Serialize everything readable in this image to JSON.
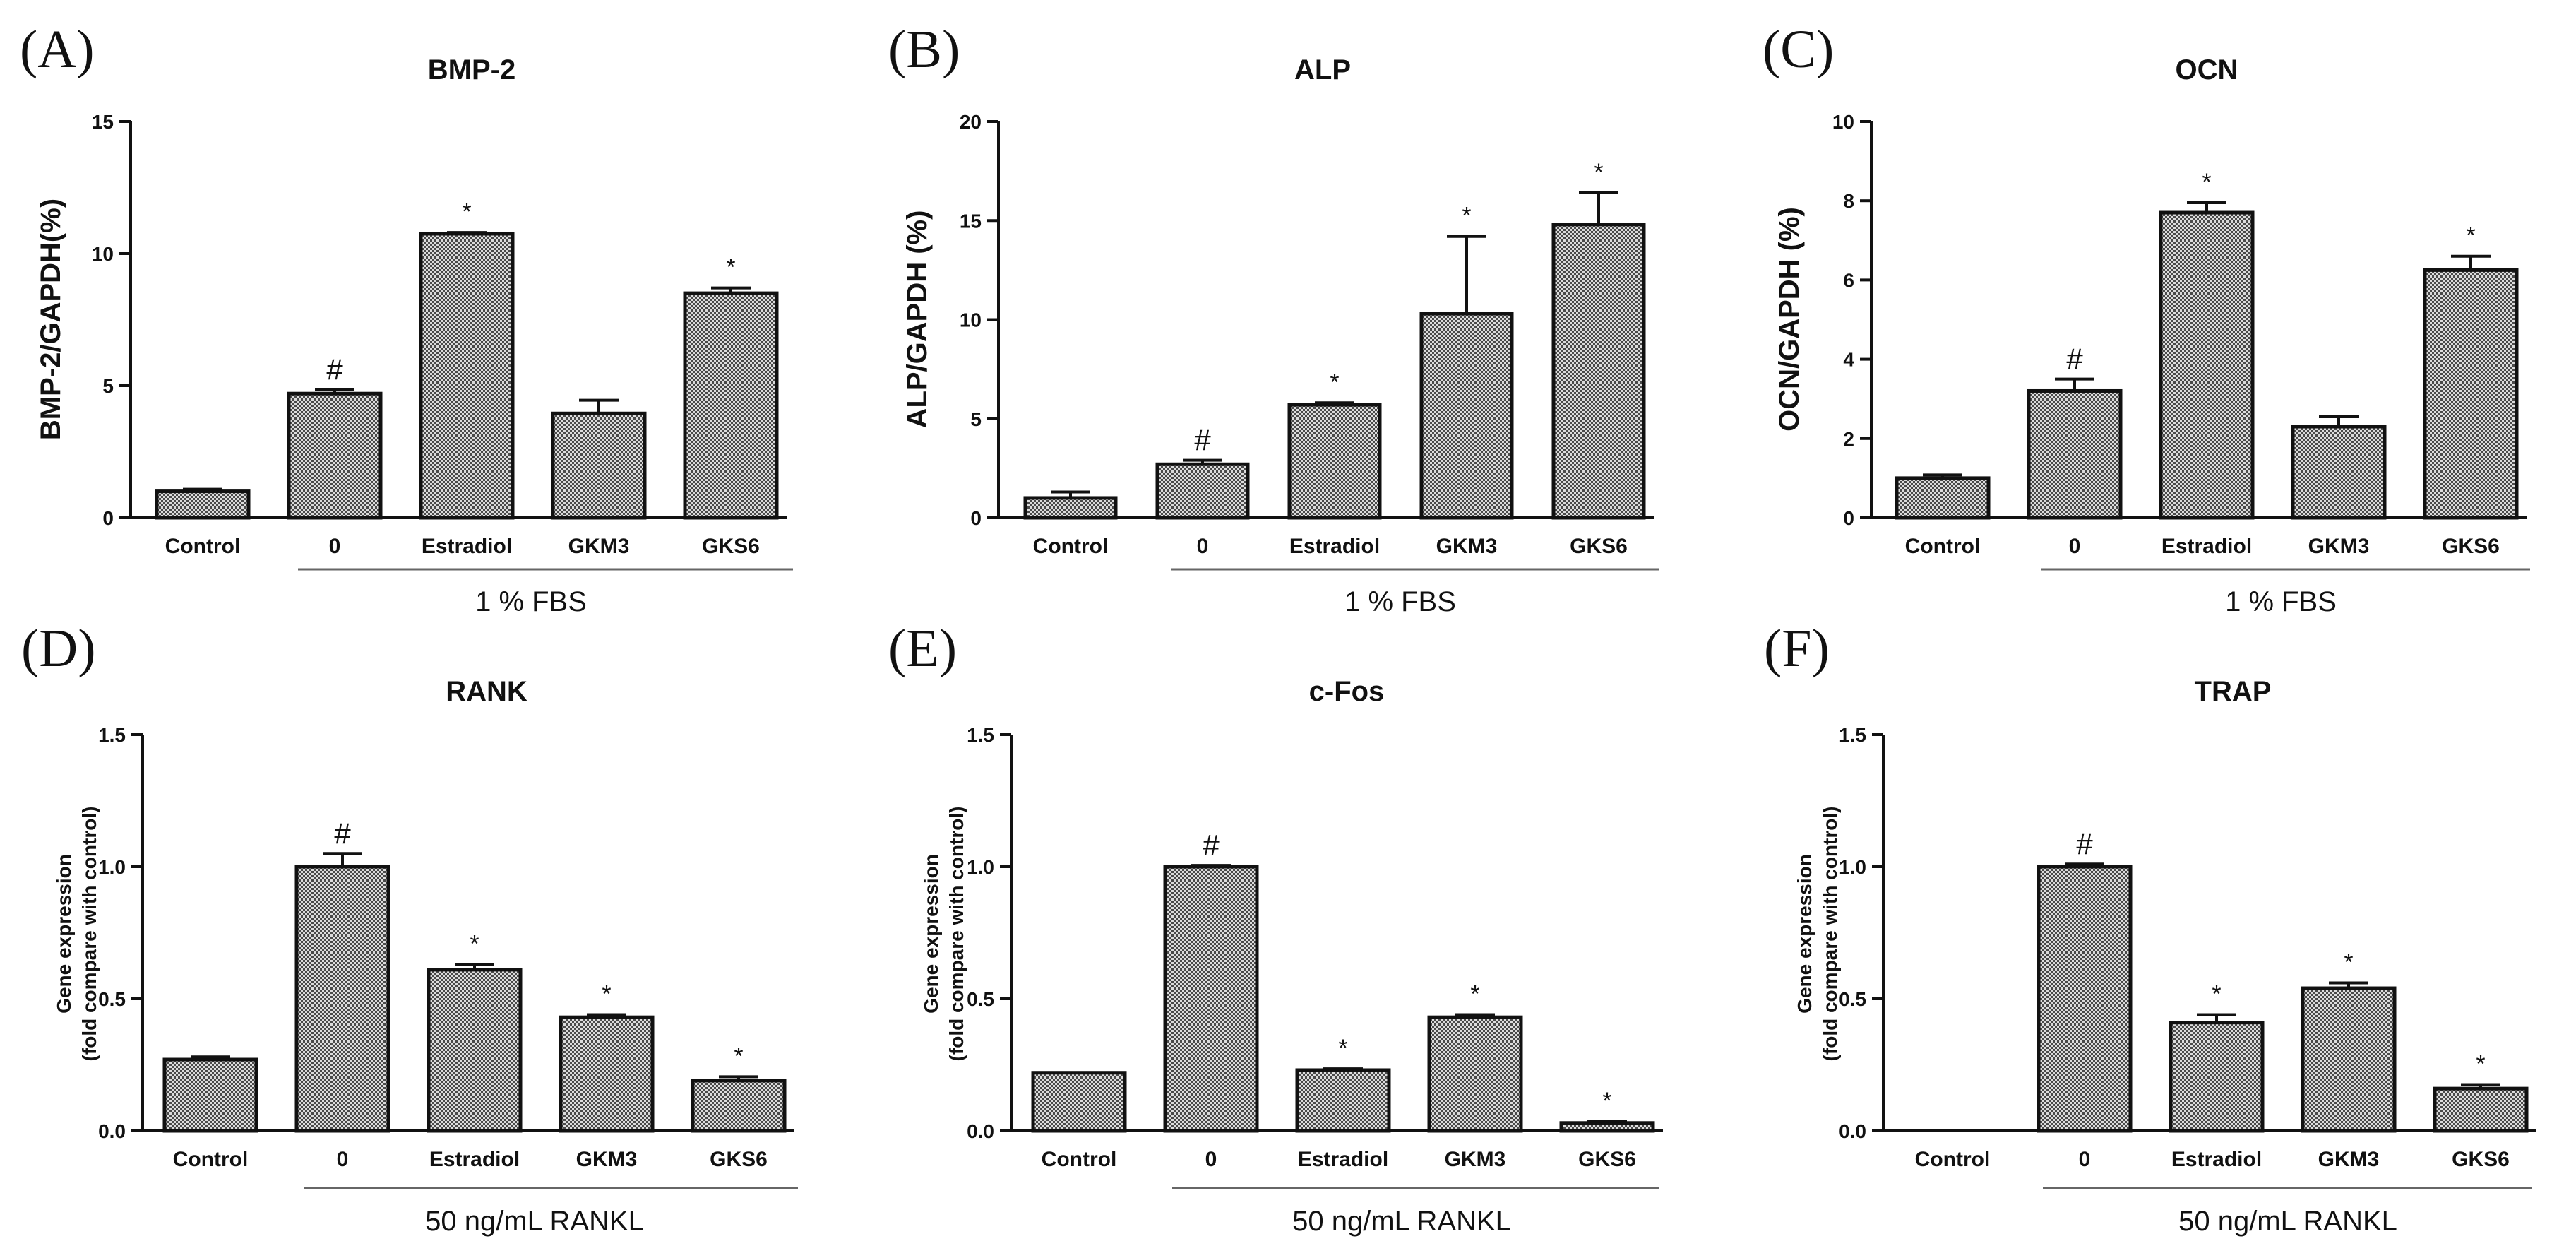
{
  "chart_data": [
    {
      "type": "bar",
      "panel": "(A)",
      "title": "BMP-2",
      "ylabel": "BMP-2/GAPDH(%)",
      "ylim": [
        0,
        15
      ],
      "yticks": [
        "0",
        "5",
        "10",
        "15"
      ],
      "categories": [
        "Control",
        "0",
        "Estradiol",
        "GKM3",
        "GKS6"
      ],
      "values": [
        1.0,
        4.7,
        10.75,
        3.95,
        8.5
      ],
      "errors": [
        0.08,
        0.15,
        0.05,
        0.5,
        0.2
      ],
      "marks": [
        "",
        "#",
        "*",
        "",
        "*"
      ],
      "group_label": "1 % FBS"
    },
    {
      "type": "bar",
      "panel": "(B)",
      "title": "ALP",
      "ylabel": "ALP/GAPDH (%)",
      "ylim": [
        0,
        20
      ],
      "yticks": [
        "0",
        "5",
        "10",
        "15",
        "20"
      ],
      "categories": [
        "Control",
        "0",
        "Estradiol",
        "GKM3",
        "GKS6"
      ],
      "values": [
        1.0,
        2.7,
        5.7,
        10.3,
        14.8
      ],
      "errors": [
        0.3,
        0.2,
        0.1,
        3.9,
        1.6
      ],
      "marks": [
        "",
        "#",
        "*",
        "*",
        "*"
      ],
      "group_label": "1 % FBS"
    },
    {
      "type": "bar",
      "panel": "(C)",
      "title": "OCN",
      "ylabel": "OCN/GAPDH (%)",
      "ylim": [
        0,
        10
      ],
      "yticks": [
        "0",
        "2",
        "4",
        "6",
        "8",
        "10"
      ],
      "categories": [
        "Control",
        "0",
        "Estradiol",
        "GKM3",
        "GKS6"
      ],
      "values": [
        1.0,
        3.2,
        7.7,
        2.3,
        6.25
      ],
      "errors": [
        0.08,
        0.3,
        0.25,
        0.25,
        0.35
      ],
      "marks": [
        "",
        "#",
        "*",
        "",
        "*"
      ],
      "group_label": "1 % FBS"
    },
    {
      "type": "bar",
      "panel": "(D)",
      "title": "RANK",
      "ylabel": [
        "Gene expression",
        "(fold compare with control)"
      ],
      "ylim": [
        0,
        1.5
      ],
      "yticks": [
        "0.0",
        "0.5",
        "1.0",
        "1.5"
      ],
      "categories": [
        "Control",
        "0",
        "Estradiol",
        "GKM3",
        "GKS6"
      ],
      "values": [
        0.27,
        1.0,
        0.61,
        0.43,
        0.19
      ],
      "errors": [
        0.01,
        0.05,
        0.02,
        0.01,
        0.015
      ],
      "marks": [
        "",
        "#",
        "*",
        "*",
        "*"
      ],
      "group_label": "50 ng/mL RANKL"
    },
    {
      "type": "bar",
      "panel": "(E)",
      "title": "c-Fos",
      "ylabel": [
        "Gene expression",
        "(fold compare with control)"
      ],
      "ylim": [
        0,
        1.5
      ],
      "yticks": [
        "0.0",
        "0.5",
        "1.0",
        "1.5"
      ],
      "categories": [
        "Control",
        "0",
        "Estradiol",
        "GKM3",
        "GKS6"
      ],
      "values": [
        0.22,
        1.0,
        0.23,
        0.43,
        0.03
      ],
      "errors": [
        0.0,
        0.005,
        0.005,
        0.01,
        0.005
      ],
      "marks": [
        "",
        "#",
        "*",
        "*",
        "*"
      ],
      "group_label": "50 ng/mL RANKL"
    },
    {
      "type": "bar",
      "panel": "(F)",
      "title": "TRAP",
      "ylabel": [
        "Gene expression",
        "(fold compare with control)"
      ],
      "ylim": [
        0,
        1.5
      ],
      "yticks": [
        "0.0",
        "0.5",
        "1.0",
        "1.5"
      ],
      "categories": [
        "Control",
        "0",
        "Estradiol",
        "GKM3",
        "GKS6"
      ],
      "values": [
        0.0,
        1.0,
        0.41,
        0.54,
        0.16
      ],
      "errors": [
        0.0,
        0.01,
        0.03,
        0.02,
        0.015
      ],
      "marks": [
        "",
        "#",
        "*",
        "*",
        "*"
      ],
      "group_label": "50 ng/mL RANKL"
    }
  ]
}
